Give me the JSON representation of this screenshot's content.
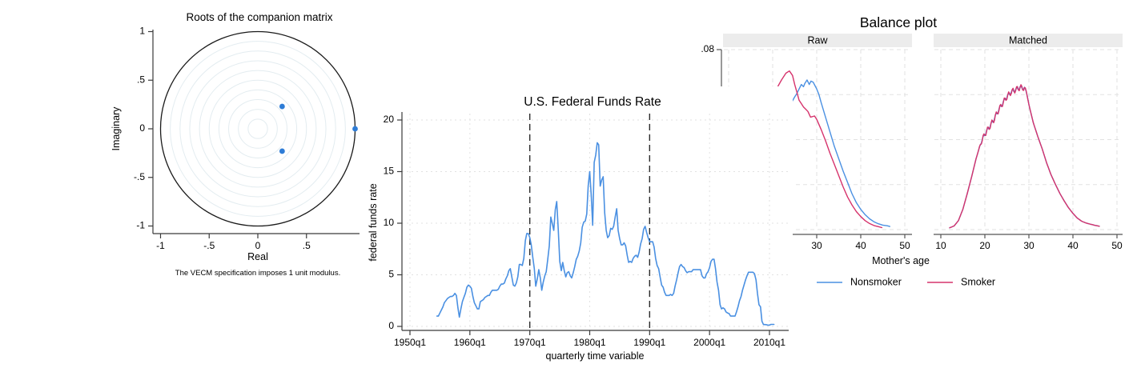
{
  "page": {
    "background": "#ffffff"
  },
  "colors": {
    "blue": "#4a90e2",
    "dot_blue": "#2e7cd6",
    "crimson": "#d6336c",
    "grid": "#e2e2e2",
    "circle_grid": "#e3ecf0",
    "axis": "#3a3a3a",
    "balance_axis": "#555555",
    "ref_line": "#2a2a2a",
    "header_bg": "#ececec"
  },
  "chart_data": [
    {
      "id": "roots",
      "type": "scatter",
      "title": "Roots of the companion matrix",
      "xlabel": "Real",
      "ylabel": "Imaginary",
      "note": "The VECM specification imposes 1 unit modulus.",
      "xlim": [
        -1,
        1.05
      ],
      "ylim": [
        -1,
        1
      ],
      "x_tick_values": [
        -1,
        -0.5,
        0,
        0.5
      ],
      "x_tick_labels": [
        "-1",
        "-.5",
        "0",
        ".5"
      ],
      "y_tick_values": [
        1,
        0.5,
        0,
        -0.5,
        -1
      ],
      "y_tick_labels": [
        "1",
        ".5",
        "0",
        "-.5",
        "-1"
      ],
      "grid_circle_radii": [
        0.1,
        0.2,
        0.3,
        0.4,
        0.5,
        0.6,
        0.7,
        0.8,
        0.9
      ],
      "unit_circle": true,
      "points": [
        [
          0.25,
          0.23
        ],
        [
          1.0,
          0.0
        ],
        [
          0.25,
          -0.23
        ]
      ]
    },
    {
      "id": "fedfunds",
      "type": "line",
      "title": "U.S. Federal Funds Rate",
      "xlabel": "quarterly time variable",
      "ylabel": "federal funds rate",
      "x_tick_labels": [
        "1950q1",
        "1960q1",
        "1970q1",
        "1980q1",
        "1990q1",
        "2000q1",
        "2010q1"
      ],
      "x_tick_years": [
        1950,
        1960,
        1970,
        1980,
        1990,
        2000,
        2010
      ],
      "y_ticks": [
        0,
        5,
        10,
        15,
        20
      ],
      "ylim": [
        0,
        20.5
      ],
      "reference_line_years": [
        1970,
        1990
      ],
      "grid": true,
      "series": {
        "name": "federal funds rate",
        "start_year": 1954.5,
        "step_years": 0.25,
        "values": [
          1.0,
          1.0,
          1.3,
          1.6,
          1.9,
          2.3,
          2.5,
          2.7,
          2.8,
          2.9,
          2.9,
          3.0,
          3.2,
          3.0,
          1.8,
          0.9,
          1.7,
          2.4,
          2.8,
          3.2,
          3.8,
          4.0,
          3.9,
          3.7,
          2.9,
          2.3,
          2.0,
          1.7,
          1.7,
          2.4,
          2.5,
          2.6,
          2.8,
          2.9,
          3.0,
          3.0,
          3.3,
          3.5,
          3.5,
          3.5,
          3.5,
          3.6,
          3.9,
          4.1,
          4.1,
          4.2,
          4.6,
          4.9,
          5.4,
          5.6,
          4.8,
          4.0,
          3.9,
          4.2,
          4.8,
          6.0,
          6.0,
          5.9,
          6.6,
          8.3,
          9.0,
          9.0,
          8.6,
          7.9,
          6.7,
          5.6,
          3.9,
          4.6,
          5.5,
          4.7,
          3.5,
          4.3,
          4.9,
          5.3,
          6.5,
          7.8,
          10.6,
          10.0,
          9.3,
          11.3,
          12.1,
          9.4,
          6.3,
          5.4,
          6.2,
          5.4,
          4.8,
          5.2,
          5.3,
          4.9,
          4.7,
          5.2,
          5.8,
          6.5,
          6.8,
          7.3,
          8.1,
          9.6,
          10.1,
          10.2,
          10.9,
          13.6,
          15.0,
          12.7,
          9.8,
          15.9,
          16.6,
          17.8,
          17.6,
          13.6,
          14.2,
          14.5,
          11.0,
          9.3,
          8.6,
          8.8,
          9.5,
          9.4,
          9.7,
          10.6,
          11.4,
          9.3,
          8.5,
          7.9,
          7.9,
          8.1,
          7.8,
          6.9,
          6.2,
          6.3,
          6.2,
          6.6,
          6.8,
          6.9,
          6.7,
          7.2,
          8.0,
          8.5,
          9.4,
          9.7,
          9.1,
          8.6,
          8.2,
          8.2,
          8.2,
          7.7,
          6.6,
          5.9,
          5.6,
          4.8,
          4.0,
          3.8,
          3.3,
          3.0,
          3.0,
          3.0,
          3.1,
          3.0,
          3.2,
          3.9,
          4.5,
          5.2,
          5.8,
          6.0,
          5.8,
          5.7,
          5.4,
          5.2,
          5.3,
          5.3,
          5.3,
          5.5,
          5.5,
          5.5,
          5.5,
          5.5,
          5.5,
          4.9,
          4.7,
          4.7,
          5.1,
          5.3,
          5.7,
          6.3,
          6.5,
          6.5,
          5.6,
          4.3,
          3.5,
          2.1,
          1.7,
          1.8,
          1.7,
          1.4,
          1.3,
          1.25,
          1.0,
          1.0,
          1.0,
          1.0,
          1.4,
          1.9,
          2.5,
          2.9,
          3.5,
          4.0,
          4.5,
          4.9,
          5.25,
          5.25,
          5.25,
          5.25,
          5.1,
          4.5,
          3.2,
          2.1,
          1.9,
          0.5,
          0.18,
          0.18,
          0.16,
          0.12,
          0.13,
          0.19,
          0.19,
          0.19
        ]
      }
    },
    {
      "id": "balance",
      "type": "line",
      "title": "Balance plot",
      "xlabel": "Mother's age",
      "panel_labels": [
        "Raw",
        "Matched"
      ],
      "y_tick_labels_visible": [
        ".08"
      ],
      "y_gridlines": [
        0,
        0.02,
        0.04,
        0.06,
        0.08
      ],
      "x_ticks": [
        10,
        20,
        30,
        40,
        50
      ],
      "legend": [
        "Nonsmoker",
        "Smoker"
      ],
      "series": {
        "raw": {
          "smoker": [
            [
              21,
              0.063
            ],
            [
              22,
              0.0665
            ],
            [
              23,
              0.0695
            ],
            [
              23.8,
              0.0705
            ],
            [
              24.5,
              0.0685
            ],
            [
              25,
              0.0645
            ],
            [
              25.5,
              0.061
            ],
            [
              26,
              0.0575
            ],
            [
              26.5,
              0.056
            ],
            [
              27,
              0.0545
            ],
            [
              27.5,
              0.0535
            ],
            [
              28,
              0.0525
            ],
            [
              28.6,
              0.05
            ],
            [
              29.5,
              0.0505
            ],
            [
              30,
              0.049
            ],
            [
              31,
              0.0445
            ],
            [
              32,
              0.0395
            ],
            [
              33,
              0.034
            ],
            [
              34,
              0.029
            ],
            [
              35,
              0.024
            ],
            [
              36,
              0.019
            ],
            [
              37,
              0.0145
            ],
            [
              38,
              0.011
            ],
            [
              39,
              0.008
            ],
            [
              40,
              0.0058
            ],
            [
              41,
              0.004
            ],
            [
              42,
              0.0027
            ],
            [
              43,
              0.0018
            ],
            [
              44,
              0.0013
            ],
            [
              44.8,
              0.0009
            ]
          ],
          "nonsmoker": [
            [
              21,
              0.044
            ],
            [
              22,
              0.048
            ],
            [
              23,
              0.052
            ],
            [
              24,
              0.0555
            ],
            [
              25,
              0.059
            ],
            [
              25.5,
              0.0605
            ],
            [
              26,
              0.0625
            ],
            [
              26.5,
              0.0645
            ],
            [
              27,
              0.0635
            ],
            [
              27.3,
              0.065
            ],
            [
              27.8,
              0.0665
            ],
            [
              28.3,
              0.0645
            ],
            [
              28.7,
              0.066
            ],
            [
              29.2,
              0.0655
            ],
            [
              29.6,
              0.064
            ],
            [
              30,
              0.0625
            ],
            [
              30.5,
              0.06
            ],
            [
              31,
              0.0565
            ],
            [
              32,
              0.05
            ],
            [
              33,
              0.0435
            ],
            [
              34,
              0.037
            ],
            [
              35,
              0.0315
            ],
            [
              36,
              0.026
            ],
            [
              37,
              0.021
            ],
            [
              38,
              0.016
            ],
            [
              39,
              0.012
            ],
            [
              40,
              0.009
            ],
            [
              41,
              0.0066
            ],
            [
              42,
              0.0048
            ],
            [
              43,
              0.0035
            ],
            [
              44,
              0.0026
            ],
            [
              45,
              0.002
            ],
            [
              46,
              0.0017
            ],
            [
              46.6,
              0.0014
            ]
          ]
        },
        "matched": {
          "base": [
            [
              12,
              0.0008
            ],
            [
              13,
              0.0016
            ],
            [
              14,
              0.004
            ],
            [
              15,
              0.009
            ],
            [
              16,
              0.016
            ],
            [
              17,
              0.0235
            ],
            [
              18,
              0.0315
            ],
            [
              19,
              0.038
            ],
            [
              20,
              0.0425
            ],
            [
              21,
              0.0455
            ],
            [
              22,
              0.0487
            ],
            [
              23,
              0.0527
            ],
            [
              24,
              0.056
            ],
            [
              25,
              0.059
            ],
            [
              26,
              0.0612
            ],
            [
              27,
              0.0622
            ],
            [
              28,
              0.0632
            ],
            [
              29,
              0.0628
            ],
            [
              29.5,
              0.061
            ],
            [
              30,
              0.0555
            ],
            [
              31,
              0.0475
            ],
            [
              32,
              0.0415
            ],
            [
              33,
              0.036
            ],
            [
              34,
              0.0298
            ],
            [
              35,
              0.0245
            ],
            [
              36,
              0.0202
            ],
            [
              37,
              0.0162
            ],
            [
              38,
              0.0128
            ],
            [
              39,
              0.0097
            ],
            [
              40,
              0.0072
            ],
            [
              41,
              0.0051
            ],
            [
              42,
              0.0037
            ],
            [
              43,
              0.0029
            ],
            [
              44,
              0.0024
            ],
            [
              45,
              0.0019
            ],
            [
              46,
              0.0015
            ]
          ],
          "wiggle": {
            "from": 18.5,
            "to": 30.2,
            "period": 0.95,
            "amplitude_smoker": 0.0013,
            "amplitude_nonsmoker": 0.0008,
            "phase_nonsmoker": 0.5
          }
        }
      }
    }
  ]
}
